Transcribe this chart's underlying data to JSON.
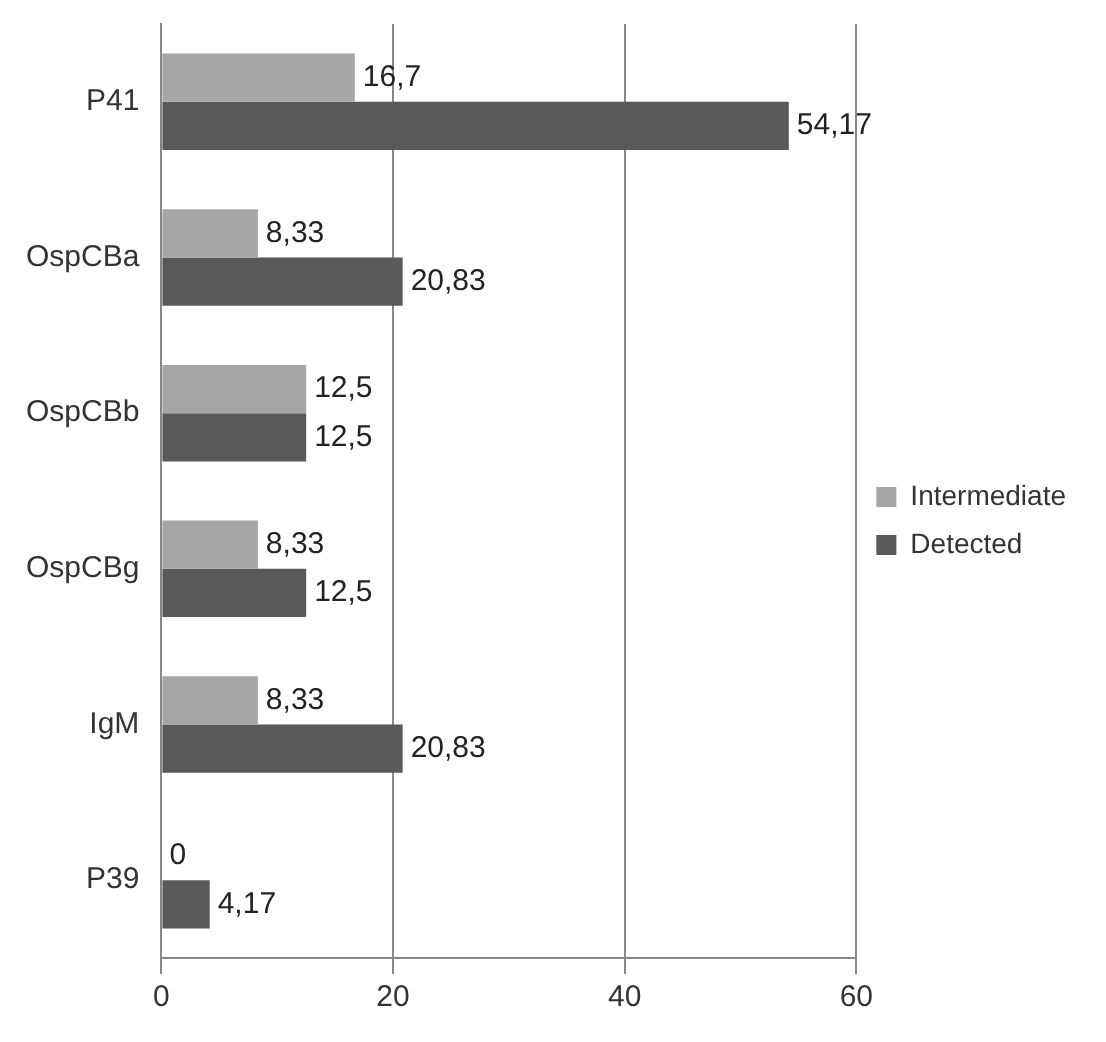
{
  "chart_data": {
    "type": "bar",
    "orientation": "horizontal",
    "categories": [
      "P41",
      "OspCBa",
      "OspCBb",
      "OspCBg",
      "IgM",
      "P39"
    ],
    "series": [
      {
        "name": "Intermediate",
        "color": "#a6a6a6",
        "values": [
          16.7,
          8.33,
          12.5,
          8.33,
          8.33,
          0
        ],
        "value_labels": [
          "16,7",
          "8,33",
          "12,5",
          "8,33",
          "8,33",
          "0"
        ]
      },
      {
        "name": "Detected",
        "color": "#595959",
        "values": [
          54.17,
          20.83,
          12.5,
          12.5,
          20.83,
          4.17
        ],
        "value_labels": [
          "54,17",
          "20,83",
          "12,5",
          "12,5",
          "20,83",
          "4,17"
        ]
      }
    ],
    "xlim": [
      0,
      60
    ],
    "xticks": [
      0,
      20,
      40,
      60
    ],
    "grid": "x",
    "legend": "right"
  }
}
